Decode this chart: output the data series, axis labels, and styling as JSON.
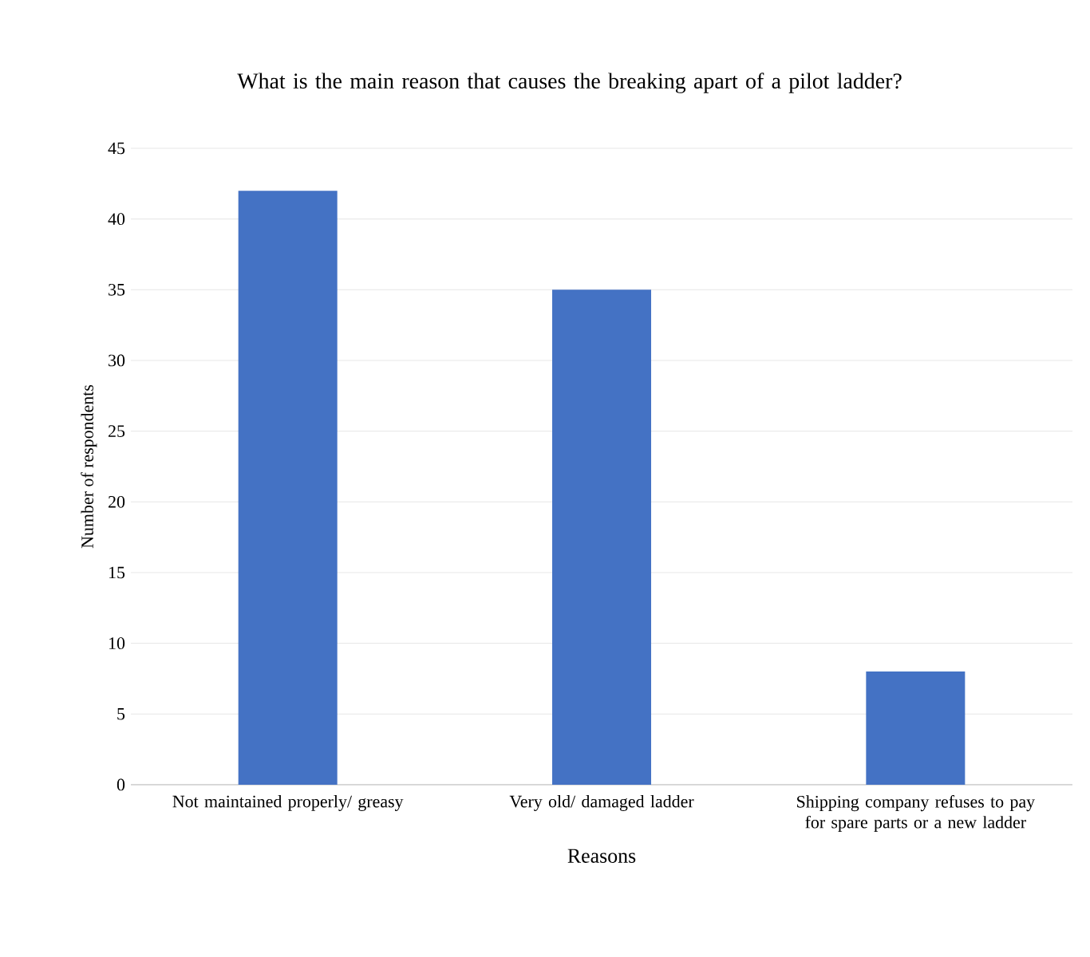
{
  "chart_data": {
    "type": "bar",
    "title": "What is the main reason that causes the breaking apart of a pilot ladder?",
    "xlabel": "Reasons",
    "ylabel": "Number of respondents",
    "categories": [
      "Not maintained properly/ greasy",
      "Very old/ damaged ladder",
      "Shipping company refuses to pay for spare parts or a new ladder"
    ],
    "values": [
      42,
      35,
      8
    ],
    "color": "#4472c4",
    "ylim": [
      0,
      45
    ],
    "yticks": [
      0,
      5,
      10,
      15,
      20,
      25,
      30,
      35,
      40,
      45
    ],
    "grid": "y"
  }
}
